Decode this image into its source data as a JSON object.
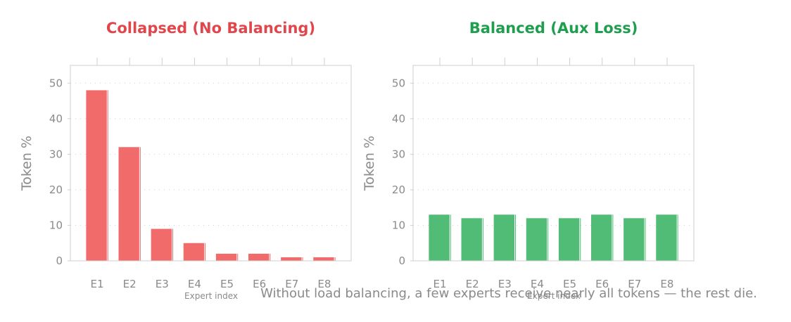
{
  "caption": "Without load balancing, a few experts receive nearly all tokens — the rest die.",
  "chart_data": [
    {
      "type": "bar",
      "title": "Collapsed (No Balancing)",
      "title_color": "#e0474c",
      "bar_color": "#f26b6b",
      "xlabel": "Expert index",
      "ylabel": "Token %",
      "categories": [
        "E1",
        "E2",
        "E3",
        "E4",
        "E5",
        "E6",
        "E7",
        "E8"
      ],
      "values": [
        48,
        32,
        9,
        5,
        2,
        2,
        1,
        1
      ],
      "ylim": [
        0,
        55
      ],
      "yticks": [
        0,
        10,
        20,
        30,
        40,
        50
      ],
      "grid": true
    },
    {
      "type": "bar",
      "title": "Balanced (Aux Loss)",
      "title_color": "#1e9e4e",
      "bar_color": "#50bc75",
      "xlabel": "Expert index",
      "ylabel": "Token %",
      "categories": [
        "E1",
        "E2",
        "E3",
        "E4",
        "E5",
        "E6",
        "E7",
        "E8"
      ],
      "values": [
        13,
        12,
        13,
        12,
        12,
        13,
        12,
        13
      ],
      "ylim": [
        0,
        55
      ],
      "yticks": [
        0,
        10,
        20,
        30,
        40,
        50
      ],
      "grid": true
    }
  ]
}
